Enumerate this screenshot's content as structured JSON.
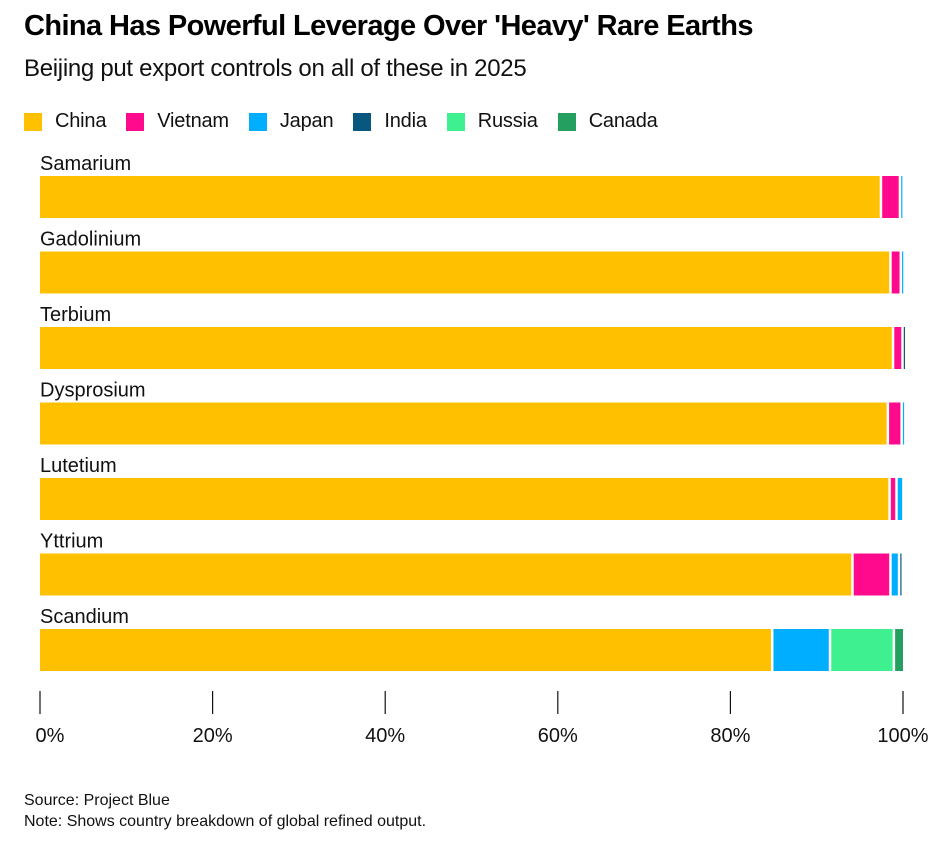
{
  "title": "China Has Powerful Leverage Over 'Heavy' Rare Earths",
  "subtitle": "Beijing put export controls on all of these in 2025",
  "legend": [
    {
      "name": "China",
      "color": "#FFC000"
    },
    {
      "name": "Vietnam",
      "color": "#FF0A8C"
    },
    {
      "name": "Japan",
      "color": "#00AEFF"
    },
    {
      "name": "India",
      "color": "#08577F"
    },
    {
      "name": "Russia",
      "color": "#3FF090"
    },
    {
      "name": "Canada",
      "color": "#249F5F"
    }
  ],
  "footer": {
    "source": "Source: Project Blue",
    "note": "Note: Shows country breakdown of global refined output."
  },
  "chart_data": {
    "type": "bar",
    "orientation": "horizontal",
    "stacked": true,
    "title": "China Has Powerful Leverage Over 'Heavy' Rare Earths",
    "subtitle": "Beijing put export controls on all of these in 2025",
    "xlabel": "",
    "ylabel": "",
    "xlim": [
      0,
      100
    ],
    "x_ticks": [
      0,
      20,
      40,
      60,
      80,
      100
    ],
    "x_tick_labels": [
      "0%",
      "20%",
      "40%",
      "60%",
      "80%",
      "100%"
    ],
    "grid": false,
    "legend_position": "top-left",
    "categories": [
      "Samarium",
      "Gadolinium",
      "Terbium",
      "Dysprosium",
      "Lutetium",
      "Yttrium",
      "Scandium"
    ],
    "series": [
      {
        "name": "China",
        "color": "#FFC000",
        "values": [
          97.3,
          98.4,
          98.7,
          98.1,
          98.3,
          94.0,
          84.7
        ]
      },
      {
        "name": "Vietnam",
        "color": "#FF0A8C",
        "values": [
          2.2,
          1.2,
          1.1,
          1.6,
          0.8,
          4.4,
          0
        ]
      },
      {
        "name": "Japan",
        "color": "#00AEFF",
        "values": [
          0.4,
          0.2,
          0,
          0.3,
          0.8,
          1.0,
          6.7
        ]
      },
      {
        "name": "India",
        "color": "#08577F",
        "values": [
          0,
          0,
          0.2,
          0,
          0,
          0.4,
          0
        ]
      },
      {
        "name": "Russia",
        "color": "#3FF090",
        "values": [
          0,
          0,
          0,
          0,
          0,
          0,
          7.4
        ]
      },
      {
        "name": "Canada",
        "color": "#249F5F",
        "values": [
          0,
          0,
          0,
          0,
          0,
          0,
          1.2
        ]
      }
    ]
  }
}
